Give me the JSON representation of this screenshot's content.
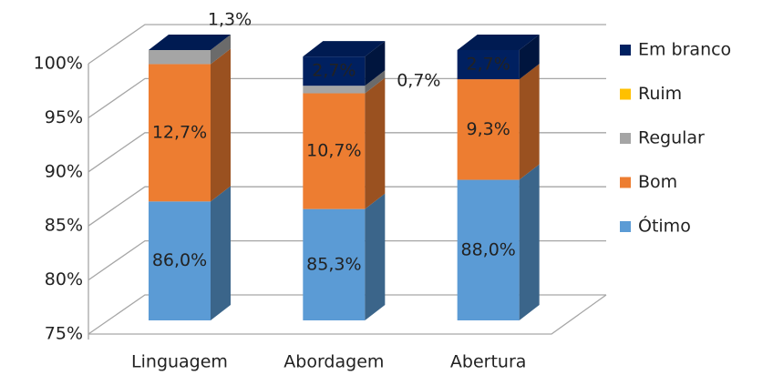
{
  "chart_data": {
    "type": "bar3d_stacked",
    "categories": [
      "Linguagem",
      "Abordagem",
      "Abertura"
    ],
    "series": [
      {
        "name": "Ótimo",
        "color": "#5b9bd5",
        "values": [
          86.0,
          85.3,
          88.0
        ],
        "value_labels": [
          "86,0%",
          "85,3%",
          "88,0%"
        ]
      },
      {
        "name": "Bom",
        "color": "#ed7d31",
        "values": [
          12.7,
          10.7,
          9.3
        ],
        "value_labels": [
          "12,7%",
          "10,7%",
          "9,3%"
        ]
      },
      {
        "name": "Regular",
        "color": "#a5a5a5",
        "values": [
          1.3,
          0.7,
          0
        ],
        "value_labels": [
          "1,3%",
          "0,7%",
          null
        ]
      },
      {
        "name": "Ruim",
        "color": "#ffc000",
        "values": [
          0,
          0,
          0
        ],
        "value_labels": [
          null,
          null,
          null
        ]
      },
      {
        "name": "Em branco",
        "color": "#002060",
        "values": [
          0,
          2.7,
          2.7
        ],
        "value_labels": [
          null,
          "2,7%",
          "2,7%"
        ]
      }
    ],
    "ylim": [
      75,
      100
    ],
    "yticks": [
      {
        "value": 75,
        "label": "75%"
      },
      {
        "value": 80,
        "label": "80%"
      },
      {
        "value": 85,
        "label": "85%"
      },
      {
        "value": 90,
        "label": "90%"
      },
      {
        "value": 95,
        "label": "95%"
      },
      {
        "value": 100,
        "label": "100%"
      }
    ],
    "grid": true
  }
}
